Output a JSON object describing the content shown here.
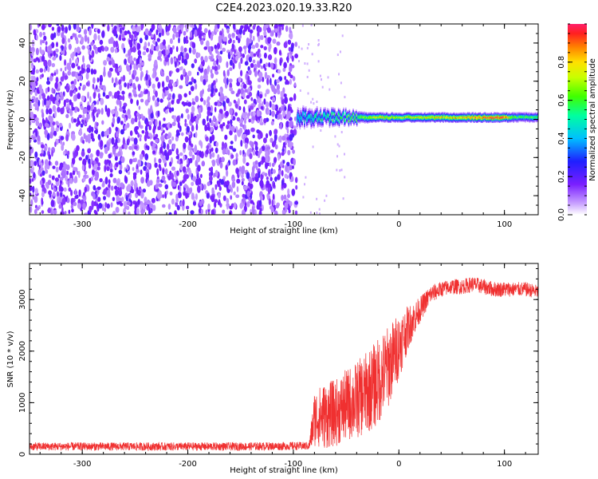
{
  "title": "C2E4.2023.020.19.33.R20",
  "colors": {
    "snr_line": "#f03030",
    "spectral_noise": "#7a1fff",
    "ridge_core": "#ff1f4a"
  },
  "chart_data": [
    {
      "type": "heatmap",
      "title": "",
      "xlabel": "Height of straight line (km)",
      "ylabel": "Frequency (Hz)",
      "xlim": [
        -350,
        132
      ],
      "ylim": [
        -50,
        50
      ],
      "xticks": [
        "-300",
        "-200",
        "-100",
        "0",
        "100"
      ],
      "yticks": [
        "-40",
        "-20",
        "0",
        "20",
        "40"
      ],
      "grid": false,
      "noise_region": {
        "x": [
          -350,
          -97
        ],
        "freq": [
          -50,
          50
        ],
        "amplitude": [
          0.05,
          0.2
        ]
      },
      "signal_ridge": {
        "x": [
          -97,
          132
        ],
        "center_freq": 1,
        "samples": [
          {
            "x": -95,
            "width_hz": 9,
            "amplitude": 0.45
          },
          {
            "x": -80,
            "width_hz": 8,
            "amplitude": 0.5
          },
          {
            "x": -60,
            "width_hz": 7,
            "amplitude": 0.55
          },
          {
            "x": -40,
            "width_hz": 6,
            "amplitude": 0.6
          },
          {
            "x": -20,
            "width_hz": 5,
            "amplitude": 0.75
          },
          {
            "x": 0,
            "width_hz": 5,
            "amplitude": 0.7
          },
          {
            "x": 20,
            "width_hz": 5,
            "amplitude": 0.75
          },
          {
            "x": 50,
            "width_hz": 5,
            "amplitude": 0.8
          },
          {
            "x": 75,
            "width_hz": 5,
            "amplitude": 0.9
          },
          {
            "x": 95,
            "width_hz": 5,
            "amplitude": 1.0
          },
          {
            "x": 110,
            "width_hz": 5,
            "amplitude": 0.6
          },
          {
            "x": 130,
            "width_hz": 5,
            "amplitude": 0.6
          }
        ]
      },
      "colorbar": {
        "label": "Normalized spectral amplitude",
        "range": [
          0,
          1
        ],
        "ticks": [
          "0.0",
          "0.2",
          "0.4",
          "0.6",
          "0.8"
        ]
      }
    },
    {
      "type": "line",
      "title": "",
      "xlabel": "Height of straight line (km)",
      "ylabel": "SNR (10 * v/v)",
      "xlim": [
        -350,
        132
      ],
      "ylim": [
        0,
        3700
      ],
      "xticks": [
        "-300",
        "-200",
        "-100",
        "0",
        "100"
      ],
      "yticks": [
        "0",
        "1000",
        "2000",
        "3000"
      ],
      "grid": false,
      "series": [
        {
          "x": [
            -350,
            -300,
            -250,
            -200,
            -150,
            -100,
            -85,
            -80,
            -70,
            -60,
            -50,
            -40,
            -30,
            -20,
            -10,
            0,
            10,
            20,
            30,
            40,
            50,
            60,
            70,
            80,
            90,
            100,
            110,
            120,
            132
          ],
          "y": [
            150,
            150,
            150,
            150,
            150,
            160,
            160,
            700,
            750,
            800,
            950,
            1050,
            1200,
            1400,
            1700,
            2100,
            2500,
            2800,
            3100,
            3200,
            3250,
            3250,
            3300,
            3250,
            3200,
            3200,
            3200,
            3200,
            3150
          ],
          "spread": [
            80,
            80,
            80,
            80,
            80,
            80,
            80,
            550,
            650,
            650,
            700,
            750,
            800,
            850,
            800,
            650,
            400,
            250,
            180,
            150,
            150,
            150,
            150,
            150,
            150,
            150,
            140,
            140,
            130
          ]
        }
      ]
    }
  ]
}
